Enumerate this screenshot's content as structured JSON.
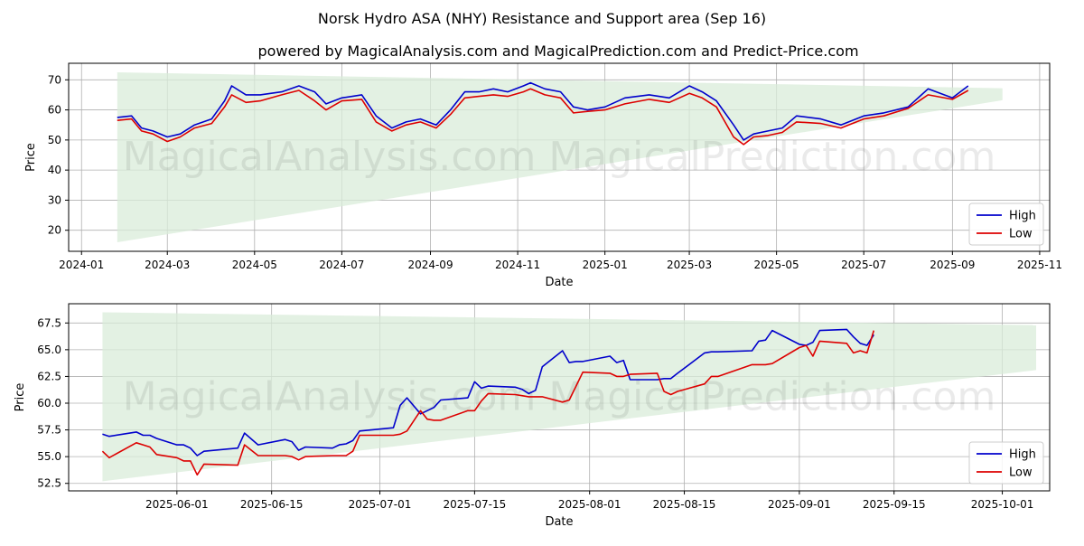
{
  "title": "Norsk Hydro ASA (NHY) Resistance and Support area (Sep 16)",
  "subtitle": "powered by MagicalAnalysis.com and MagicalPrediction.com and Predict-Price.com",
  "watermark": "MagicalAnalysis.com    MagicalPrediction.com",
  "colors": {
    "high": "#0000cc",
    "low": "#dd0000",
    "band": "#d9ecd9",
    "grid": "#b0b0b0"
  },
  "chart_data": [
    {
      "type": "line",
      "xlabel": "Date",
      "ylabel": "Price",
      "xlim": [
        "2023-12-23",
        "2025-11-08"
      ],
      "ylim": [
        13,
        75.5
      ],
      "xticks": [
        "2024-01-01",
        "2024-03-01",
        "2024-05-01",
        "2024-07-01",
        "2024-09-01",
        "2024-11-01",
        "2025-01-01",
        "2025-03-01",
        "2025-05-01",
        "2025-07-01",
        "2025-09-01",
        "2025-11-01"
      ],
      "xtick_labels": [
        "2024-01",
        "2024-03",
        "2024-05",
        "2024-07",
        "2024-09",
        "2024-11",
        "2025-01",
        "2025-03",
        "2025-05",
        "2025-07",
        "2025-09",
        "2025-11"
      ],
      "yticks": [
        20,
        30,
        40,
        50,
        60,
        70
      ],
      "ytick_labels": [
        "20",
        "30",
        "40",
        "50",
        "60",
        "70"
      ],
      "band": {
        "x": [
          "2024-01-26",
          "2025-10-06"
        ],
        "upper": [
          72.5,
          67.2
        ],
        "lower": [
          16.0,
          63.2
        ]
      },
      "legend": [
        "High",
        "Low"
      ],
      "legend_position": "lower-right",
      "series": [
        {
          "name": "High",
          "x": [
            "2024-01-26",
            "2024-02-05",
            "2024-02-12",
            "2024-02-20",
            "2024-03-01",
            "2024-03-10",
            "2024-03-20",
            "2024-04-01",
            "2024-04-10",
            "2024-04-15",
            "2024-04-25",
            "2024-05-05",
            "2024-05-20",
            "2024-06-01",
            "2024-06-12",
            "2024-06-20",
            "2024-07-01",
            "2024-07-15",
            "2024-07-25",
            "2024-08-05",
            "2024-08-15",
            "2024-08-25",
            "2024-09-05",
            "2024-09-15",
            "2024-09-25",
            "2024-10-05",
            "2024-10-15",
            "2024-10-25",
            "2024-11-05",
            "2024-11-10",
            "2024-11-20",
            "2024-12-01",
            "2024-12-10",
            "2024-12-20",
            "2025-01-01",
            "2025-01-15",
            "2025-02-01",
            "2025-02-15",
            "2025-03-01",
            "2025-03-10",
            "2025-03-20",
            "2025-04-01",
            "2025-04-08",
            "2025-04-15",
            "2025-04-25",
            "2025-05-05",
            "2025-05-15",
            "2025-06-01",
            "2025-06-15",
            "2025-07-01",
            "2025-07-15",
            "2025-08-01",
            "2025-08-15",
            "2025-09-01",
            "2025-09-12"
          ],
          "values": [
            57.5,
            58,
            54,
            53,
            51,
            52,
            55,
            57,
            63,
            68,
            65,
            65,
            66,
            68,
            66,
            62,
            64,
            65,
            58,
            54,
            56,
            57,
            55,
            60,
            66,
            66,
            67,
            66,
            68,
            69,
            67,
            66,
            61,
            60,
            61,
            64,
            65,
            64,
            68,
            66,
            63,
            55,
            50,
            52,
            53,
            54,
            58,
            57,
            55,
            58,
            59,
            61,
            67,
            64,
            68
          ]
        },
        {
          "name": "Low",
          "x": [
            "2024-01-26",
            "2024-02-05",
            "2024-02-12",
            "2024-02-20",
            "2024-03-01",
            "2024-03-10",
            "2024-03-20",
            "2024-04-01",
            "2024-04-10",
            "2024-04-15",
            "2024-04-25",
            "2024-05-05",
            "2024-05-20",
            "2024-06-01",
            "2024-06-12",
            "2024-06-20",
            "2024-07-01",
            "2024-07-15",
            "2024-07-25",
            "2024-08-05",
            "2024-08-15",
            "2024-08-25",
            "2024-09-05",
            "2024-09-15",
            "2024-09-25",
            "2024-10-05",
            "2024-10-15",
            "2024-10-25",
            "2024-11-05",
            "2024-11-10",
            "2024-11-20",
            "2024-12-01",
            "2024-12-10",
            "2024-12-20",
            "2025-01-01",
            "2025-01-15",
            "2025-02-01",
            "2025-02-15",
            "2025-03-01",
            "2025-03-10",
            "2025-03-20",
            "2025-04-01",
            "2025-04-08",
            "2025-04-15",
            "2025-04-25",
            "2025-05-05",
            "2025-05-15",
            "2025-06-01",
            "2025-06-15",
            "2025-07-01",
            "2025-07-15",
            "2025-08-01",
            "2025-08-15",
            "2025-09-01",
            "2025-09-12"
          ],
          "values": [
            56.5,
            57,
            53,
            52,
            49.5,
            51,
            54,
            55.5,
            61,
            65,
            62.5,
            63,
            65,
            66.5,
            63,
            60,
            63,
            63.5,
            56,
            53,
            55,
            56,
            54,
            58.5,
            64,
            64.5,
            65,
            64.5,
            66,
            67,
            65,
            64,
            59,
            59.5,
            60,
            62,
            63.5,
            62.5,
            65.5,
            64,
            61,
            51,
            48.5,
            51,
            51.5,
            52.5,
            56,
            55.5,
            54,
            57,
            58,
            60.5,
            65,
            63.5,
            66.5
          ]
        }
      ]
    },
    {
      "type": "line",
      "xlabel": "Date",
      "ylabel": "Price",
      "xlim": [
        "2025-05-16",
        "2025-10-08"
      ],
      "ylim": [
        51.8,
        69.3
      ],
      "xticks": [
        "2025-06-01",
        "2025-06-15",
        "2025-07-01",
        "2025-07-15",
        "2025-08-01",
        "2025-08-15",
        "2025-09-01",
        "2025-09-15",
        "2025-10-01"
      ],
      "xtick_labels": [
        "2025-06-01",
        "2025-06-15",
        "2025-07-01",
        "2025-07-15",
        "2025-08-01",
        "2025-08-15",
        "2025-09-01",
        "2025-09-15",
        "2025-10-01"
      ],
      "yticks": [
        52.5,
        55.0,
        57.5,
        60.0,
        62.5,
        65.0,
        67.5
      ],
      "ytick_labels": [
        "52.5",
        "55.0",
        "57.5",
        "60.0",
        "62.5",
        "65.0",
        "67.5"
      ],
      "band": {
        "x": [
          "2025-05-21",
          "2025-10-06"
        ],
        "upper": [
          68.5,
          67.3
        ],
        "lower": [
          52.7,
          63.1
        ]
      },
      "legend": [
        "High",
        "Low"
      ],
      "legend_position": "lower-right",
      "series": [
        {
          "name": "High",
          "x": [
            "2025-05-21",
            "2025-05-22",
            "2025-05-26",
            "2025-05-27",
            "2025-05-28",
            "2025-05-29",
            "2025-06-01",
            "2025-06-02",
            "2025-06-03",
            "2025-06-04",
            "2025-06-05",
            "2025-06-10",
            "2025-06-11",
            "2025-06-13",
            "2025-06-17",
            "2025-06-18",
            "2025-06-19",
            "2025-06-20",
            "2025-06-24",
            "2025-06-25",
            "2025-06-26",
            "2025-06-27",
            "2025-06-28",
            "2025-07-03",
            "2025-07-04",
            "2025-07-05",
            "2025-07-07",
            "2025-07-08",
            "2025-07-09",
            "2025-07-10",
            "2025-07-14",
            "2025-07-15",
            "2025-07-16",
            "2025-07-17",
            "2025-07-21",
            "2025-07-22",
            "2025-07-23",
            "2025-07-24",
            "2025-07-25",
            "2025-07-28",
            "2025-07-29",
            "2025-07-30",
            "2025-07-31",
            "2025-08-04",
            "2025-08-05",
            "2025-08-06",
            "2025-08-07",
            "2025-08-11",
            "2025-08-12",
            "2025-08-13",
            "2025-08-14",
            "2025-08-18",
            "2025-08-19",
            "2025-08-20",
            "2025-08-25",
            "2025-08-26",
            "2025-08-27",
            "2025-08-28",
            "2025-09-01",
            "2025-09-02",
            "2025-09-03",
            "2025-09-04",
            "2025-09-08",
            "2025-09-09",
            "2025-09-10",
            "2025-09-11",
            "2025-09-12"
          ],
          "values": [
            57.1,
            56.9,
            57.3,
            57.0,
            57.0,
            56.7,
            56.1,
            56.1,
            55.8,
            55.1,
            55.5,
            55.8,
            57.2,
            56.1,
            56.6,
            56.4,
            55.6,
            55.9,
            55.8,
            56.1,
            56.2,
            56.5,
            57.4,
            57.7,
            59.8,
            60.5,
            59.0,
            59.3,
            59.6,
            60.3,
            60.5,
            62.0,
            61.4,
            61.6,
            61.5,
            61.3,
            60.9,
            61.2,
            63.4,
            64.9,
            63.8,
            63.9,
            63.9,
            64.4,
            63.8,
            64.0,
            62.2,
            62.2,
            62.3,
            62.3,
            62.8,
            64.7,
            64.8,
            64.8,
            64.9,
            65.8,
            65.9,
            66.8,
            65.5,
            65.4,
            65.7,
            66.8,
            66.9,
            66.2,
            65.6,
            65.4,
            66.4
          ]
        },
        {
          "name": "Low",
          "x": [
            "2025-05-21",
            "2025-05-22",
            "2025-05-26",
            "2025-05-27",
            "2025-05-28",
            "2025-05-29",
            "2025-06-01",
            "2025-06-02",
            "2025-06-03",
            "2025-06-04",
            "2025-06-05",
            "2025-06-10",
            "2025-06-11",
            "2025-06-13",
            "2025-06-17",
            "2025-06-18",
            "2025-06-19",
            "2025-06-20",
            "2025-06-24",
            "2025-06-25",
            "2025-06-26",
            "2025-06-27",
            "2025-06-28",
            "2025-07-03",
            "2025-07-04",
            "2025-07-05",
            "2025-07-07",
            "2025-07-08",
            "2025-07-09",
            "2025-07-10",
            "2025-07-14",
            "2025-07-15",
            "2025-07-16",
            "2025-07-17",
            "2025-07-21",
            "2025-07-22",
            "2025-07-23",
            "2025-07-24",
            "2025-07-25",
            "2025-07-28",
            "2025-07-29",
            "2025-07-30",
            "2025-07-31",
            "2025-08-04",
            "2025-08-05",
            "2025-08-06",
            "2025-08-07",
            "2025-08-11",
            "2025-08-12",
            "2025-08-13",
            "2025-08-14",
            "2025-08-18",
            "2025-08-19",
            "2025-08-20",
            "2025-08-25",
            "2025-08-26",
            "2025-08-27",
            "2025-08-28",
            "2025-09-01",
            "2025-09-02",
            "2025-09-03",
            "2025-09-04",
            "2025-09-08",
            "2025-09-09",
            "2025-09-10",
            "2025-09-11",
            "2025-09-12"
          ],
          "values": [
            55.5,
            54.9,
            56.3,
            56.1,
            55.9,
            55.2,
            54.9,
            54.6,
            54.6,
            53.3,
            54.3,
            54.2,
            56.1,
            55.1,
            55.1,
            55.0,
            54.7,
            55.0,
            55.1,
            55.1,
            55.1,
            55.5,
            57.0,
            57.0,
            57.1,
            57.4,
            59.3,
            58.5,
            58.4,
            58.4,
            59.3,
            59.3,
            60.2,
            60.9,
            60.8,
            60.7,
            60.6,
            60.6,
            60.6,
            60.1,
            60.3,
            61.6,
            62.9,
            62.8,
            62.5,
            62.5,
            62.7,
            62.8,
            61.1,
            60.8,
            61.1,
            61.8,
            62.5,
            62.5,
            63.6,
            63.6,
            63.6,
            63.7,
            65.2,
            65.4,
            64.4,
            65.8,
            65.6,
            64.7,
            64.9,
            64.7,
            66.8
          ]
        }
      ]
    }
  ]
}
